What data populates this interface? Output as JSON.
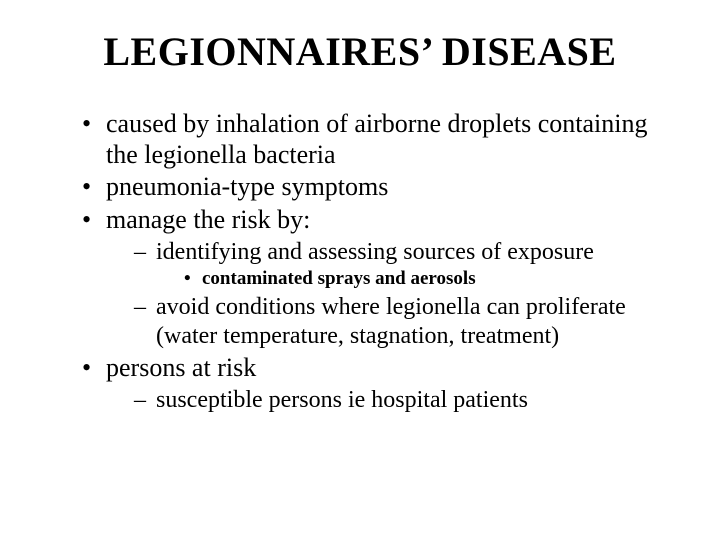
{
  "slide": {
    "title": "LEGIONNAIRES’ DISEASE",
    "background_color": "#ffffff",
    "text_color": "#000000",
    "font_family": "Times New Roman",
    "title_fontsize": 40,
    "body_fontsize": 26,
    "sub_fontsize": 24,
    "subsub_fontsize": 19,
    "bullets": [
      {
        "text": "caused by inhalation of airborne droplets containing the legionella bacteria"
      },
      {
        "text": "pneumonia-type symptoms"
      },
      {
        "text": "manage the risk by:",
        "children": [
          {
            "text": "identifying and assessing sources of exposure",
            "children": [
              {
                "text": "contaminated sprays and aerosols"
              }
            ]
          },
          {
            "text": "avoid conditions where legionella can proliferate (water temperature, stagnation, treatment)"
          }
        ]
      },
      {
        "text": "persons at risk",
        "children": [
          {
            "text": "susceptible persons ie hospital patients"
          }
        ]
      }
    ]
  }
}
